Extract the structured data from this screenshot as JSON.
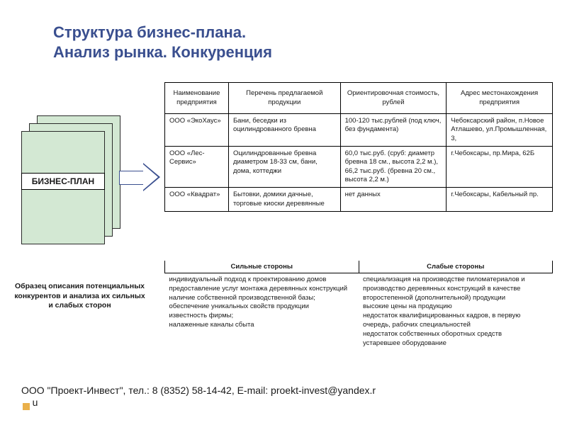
{
  "title_line1": "Структура бизнес-плана.",
  "title_line2": "Анализ рынка. Конкуренция",
  "bp_label": "БИЗНЕС-ПЛАН",
  "caption": "Образец описания потенциальных конкурентов и анализа их сильных и слабых сторон",
  "table": {
    "headers": [
      "Наименование предприятия",
      "Перечень предлагаемой продукции",
      "Ориентировочная стоимость, рублей",
      "Адрес местонахождения предприятия"
    ],
    "rows": [
      {
        "c0": "ООО «ЭкоХаус»",
        "c1": "Бани, беседки из оцилиндрованного бревна",
        "c2": "100-120 тыс.рублей (под ключ, без фундамента)",
        "c3": "Чебоксарский район, п.Новое Атлашево, ул.Промышленная, 3,"
      },
      {
        "c0": "ООО «Лес-Сервис»",
        "c1": "Оцилиндрованные бревна диаметром 18-33 см, бани, дома, коттеджи",
        "c2": "60,0 тыс.руб. (сруб: диаметр бревна 18 см., высота 2,2 м.), 66,2 тыс.руб. (бревна 20 см., высота 2,2 м.)",
        "c3": "г.Чебоксары, пр.Мира, 62Б"
      },
      {
        "c0": "ООО «Квадрат»",
        "c1": "Бытовки, домики дачные, торговые киоски деревянные",
        "c2": "нет данных",
        "c3": "г.Чебоксары, Кабельный пр."
      }
    ]
  },
  "swot": {
    "h_strong": "Сильные стороны",
    "h_weak": "Слабые стороны",
    "strong": "индивидуальный подход к проектированию домов\nпредоставление услуг монтажа деревянных конструкций\nналичие собственной производственной базы;\nобеспечение уникальных свойств продукции\nизвестность фирмы;\nналаженные каналы сбыта",
    "weak": "специализация на производстве пиломатериалов и производство деревянных конструкций в качестве второстепенной (дополнительной) продукции\nвысокие цены на продукцию\nнедостаток квалифицированных кадров, в первую очередь, рабочих специальностей\nнедостаток собственных оборотных средств\nустаревшее оборудование"
  },
  "footer": "ООО \"Проект-Инвест\", тел.: 8 (8352) 58-14-42, E-mail: proekt-invest@yandex.r",
  "footer2": "u",
  "colors": {
    "title": "#3a4f8f",
    "page_fill": "#d3e8d3",
    "accent_square": "#eab04a"
  }
}
